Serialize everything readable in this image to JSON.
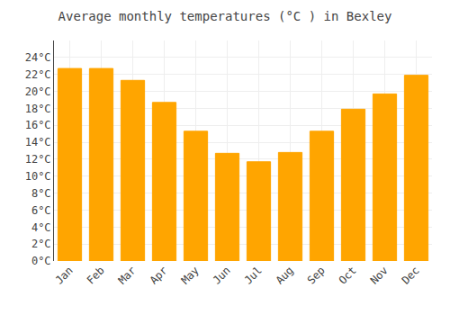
{
  "chart_data": {
    "type": "bar",
    "title": "Average monthly temperatures (°C ) in Bexley",
    "categories": [
      "Jan",
      "Feb",
      "Mar",
      "Apr",
      "May",
      "Jun",
      "Jul",
      "Aug",
      "Sep",
      "Oct",
      "Nov",
      "Dec"
    ],
    "values": [
      22.7,
      22.7,
      21.3,
      18.7,
      15.3,
      12.7,
      11.7,
      12.8,
      15.3,
      17.9,
      19.7,
      21.9
    ],
    "color": "#FFA500",
    "ylim": [
      0,
      26
    ],
    "yticks": [
      {
        "value": 0,
        "label": "0°C"
      },
      {
        "value": 2,
        "label": "2°C"
      },
      {
        "value": 4,
        "label": "4°C"
      },
      {
        "value": 6,
        "label": "6°C"
      },
      {
        "value": 8,
        "label": "8°C"
      },
      {
        "value": 10,
        "label": "10°C"
      },
      {
        "value": 12,
        "label": "12°C"
      },
      {
        "value": 14,
        "label": "14°C"
      },
      {
        "value": 16,
        "label": "16°C"
      },
      {
        "value": 18,
        "label": "18°C"
      },
      {
        "value": 20,
        "label": "20°C"
      },
      {
        "value": 22,
        "label": "22°C"
      },
      {
        "value": 24,
        "label": "24°C"
      }
    ],
    "grid": true
  }
}
